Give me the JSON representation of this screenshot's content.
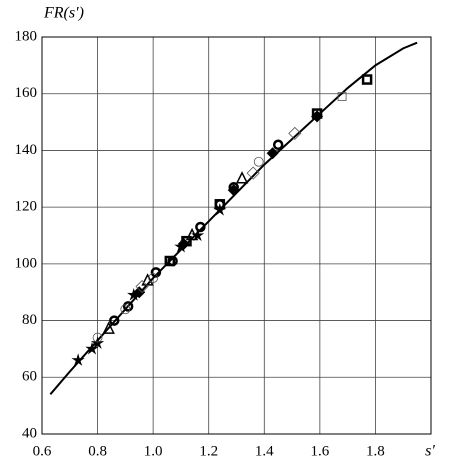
{
  "chart_data": {
    "type": "scatter",
    "x_label": "s′",
    "y_label": "FR(s′)",
    "xlim": [
      0.6,
      2.0
    ],
    "ylim": [
      40,
      180
    ],
    "xticks": [
      0.6,
      0.8,
      {
        "value": 1,
        "label": "1.0"
      },
      1.2,
      1.4,
      1.6,
      1.8
    ],
    "yticks": [
      40,
      60,
      80,
      100,
      120,
      140,
      160,
      180
    ],
    "grid": true,
    "color": "#000000",
    "curve": {
      "x": [
        0.63,
        0.7,
        0.8,
        0.9,
        1.0,
        1.1,
        1.2,
        1.3,
        1.4,
        1.5,
        1.6,
        1.7,
        1.8,
        1.9,
        1.95
      ],
      "values": [
        54,
        62,
        73,
        84,
        95,
        105,
        115,
        125,
        135,
        144,
        153,
        162,
        170,
        176,
        178
      ]
    },
    "series": [
      {
        "marker": "star",
        "x": [
          0.73,
          0.78,
          0.8,
          0.93,
          1.1,
          1.16,
          1.24
        ],
        "values": [
          66,
          70,
          72,
          89,
          106,
          110,
          119
        ]
      },
      {
        "marker": "circle-bold",
        "x": [
          0.86,
          0.91,
          1.01,
          1.07,
          1.17,
          1.24,
          1.29,
          1.45
        ],
        "values": [
          80,
          85,
          97,
          101,
          113,
          121,
          127,
          142
        ]
      },
      {
        "marker": "square-bold",
        "x": [
          1.06,
          1.12,
          1.24,
          1.59,
          1.77
        ],
        "values": [
          101,
          108,
          121,
          153,
          165
        ]
      },
      {
        "marker": "diamond-filled",
        "x": [
          0.95,
          1.11,
          1.29,
          1.43,
          1.59
        ],
        "values": [
          90,
          107,
          126,
          139,
          152
        ]
      },
      {
        "marker": "triangle",
        "x": [
          0.84,
          0.98,
          1.14,
          1.32
        ],
        "values": [
          77,
          94,
          110,
          130
        ]
      },
      {
        "marker": "circle",
        "x": [
          0.8,
          0.9,
          1.0,
          1.38
        ],
        "values": [
          74,
          84,
          95,
          136
        ]
      },
      {
        "marker": "diamond",
        "x": [
          0.96,
          1.36,
          1.51
        ],
        "values": [
          92,
          132,
          146
        ]
      },
      {
        "marker": "square",
        "x": [
          1.68
        ],
        "values": [
          159
        ]
      }
    ]
  }
}
